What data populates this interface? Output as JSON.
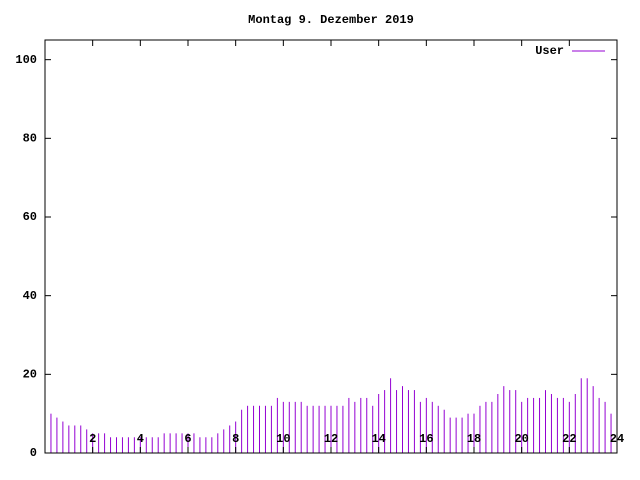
{
  "chart_data": {
    "type": "impulse",
    "title": "Montag 9. Dezember 2019",
    "series": [
      {
        "name": "User",
        "color": "#9400d3",
        "x": [
          0,
          0.25,
          0.5,
          0.75,
          1,
          1.25,
          1.5,
          1.75,
          2,
          2.25,
          2.5,
          2.75,
          3,
          3.25,
          3.5,
          3.75,
          4,
          4.25,
          4.5,
          4.75,
          5,
          5.25,
          5.5,
          5.75,
          6,
          6.25,
          6.5,
          6.75,
          7,
          7.25,
          7.5,
          7.75,
          8,
          8.25,
          8.5,
          8.75,
          9,
          9.25,
          9.5,
          9.75,
          10,
          10.25,
          10.5,
          10.75,
          11,
          11.25,
          11.5,
          11.75,
          12,
          12.25,
          12.5,
          12.75,
          13,
          13.25,
          13.5,
          13.75,
          14,
          14.25,
          14.5,
          14.75,
          15,
          15.25,
          15.5,
          15.75,
          16,
          16.25,
          16.5,
          16.75,
          17,
          17.25,
          17.5,
          17.75,
          18,
          18.25,
          18.5,
          18.75,
          19,
          19.25,
          19.5,
          19.75,
          20,
          20.25,
          20.5,
          20.75,
          21,
          21.25,
          21.5,
          21.75,
          22,
          22.25,
          22.5,
          22.75,
          23,
          23.25,
          23.5,
          23.75
        ],
        "values": [
          10,
          10,
          9,
          8,
          7,
          7,
          7,
          6,
          5,
          5,
          5,
          4,
          4,
          4,
          4,
          4,
          4,
          4,
          4,
          4,
          5,
          5,
          5,
          5,
          5,
          5,
          4,
          4,
          4,
          5,
          6,
          7,
          8,
          11,
          12,
          12,
          12,
          12,
          12,
          14,
          13,
          13,
          13,
          13,
          12,
          12,
          12,
          12,
          12,
          12,
          12,
          14,
          13,
          14,
          14,
          12,
          15,
          16,
          19,
          16,
          17,
          16,
          16,
          13,
          14,
          13,
          12,
          11,
          9,
          9,
          9,
          10,
          10,
          12,
          13,
          13,
          15,
          17,
          16,
          16,
          13,
          14,
          14,
          14,
          16,
          15,
          14,
          14,
          13,
          15,
          19,
          19,
          17,
          14,
          13,
          10
        ]
      }
    ],
    "xlim": [
      0,
      24
    ],
    "xticks": [
      2,
      4,
      6,
      8,
      10,
      12,
      14,
      16,
      18,
      20,
      22,
      24
    ],
    "ylim": [
      0,
      105
    ],
    "yticks": [
      0,
      20,
      40,
      60,
      80,
      100
    ],
    "legend": "top-right"
  }
}
